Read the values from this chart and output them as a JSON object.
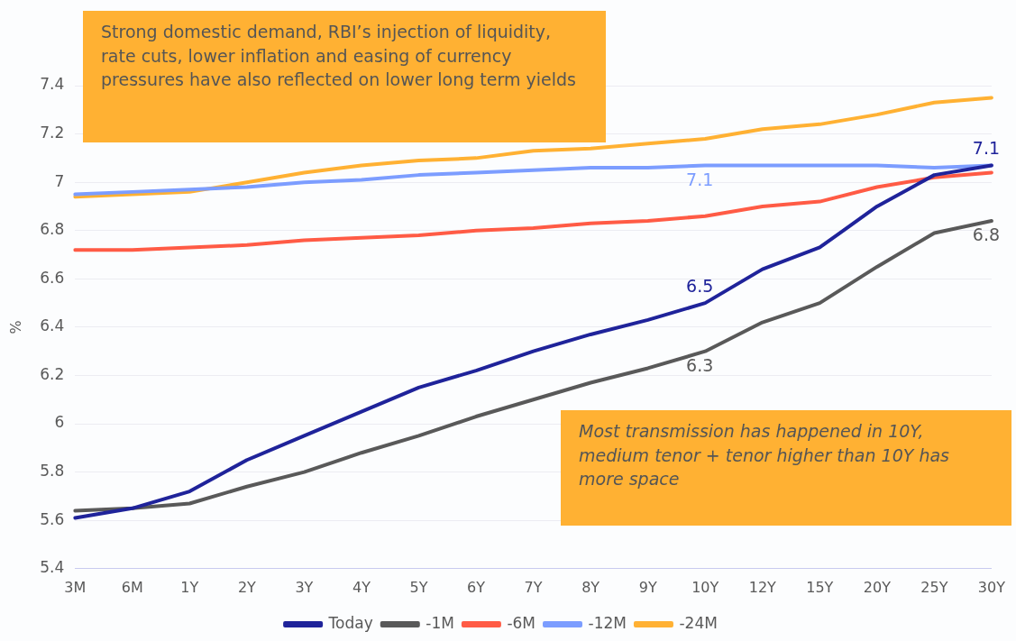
{
  "chart_data": {
    "type": "line",
    "ylabel": "%",
    "categories": [
      "3M",
      "6M",
      "1Y",
      "2Y",
      "3Y",
      "4Y",
      "5Y",
      "6Y",
      "7Y",
      "8Y",
      "9Y",
      "10Y",
      "12Y",
      "15Y",
      "20Y",
      "25Y",
      "30Y"
    ],
    "series": [
      {
        "name": "Today",
        "color": "#1f239a",
        "values": [
          5.61,
          5.65,
          5.72,
          5.85,
          5.95,
          6.05,
          6.15,
          6.22,
          6.3,
          6.37,
          6.43,
          6.5,
          6.64,
          6.73,
          6.9,
          7.03,
          7.07
        ],
        "value_labels": [
          null,
          null,
          null,
          null,
          null,
          null,
          null,
          null,
          null,
          null,
          null,
          "6.5",
          null,
          null,
          null,
          null,
          "7.1"
        ]
      },
      {
        "name": "-1M",
        "color": "#595959",
        "values": [
          5.64,
          5.65,
          5.67,
          5.74,
          5.8,
          5.88,
          5.95,
          6.03,
          6.1,
          6.17,
          6.23,
          6.3,
          6.42,
          6.5,
          6.65,
          6.79,
          6.84
        ],
        "value_labels": [
          null,
          null,
          null,
          null,
          null,
          null,
          null,
          null,
          null,
          null,
          null,
          "6.3",
          null,
          null,
          null,
          null,
          "6.8"
        ]
      },
      {
        "name": "-6M",
        "color": "#ff5b45",
        "values": [
          6.72,
          6.72,
          6.73,
          6.74,
          6.76,
          6.77,
          6.78,
          6.8,
          6.81,
          6.83,
          6.84,
          6.86,
          6.9,
          6.92,
          6.98,
          7.02,
          7.04
        ]
      },
      {
        "name": "-12M",
        "color": "#7c9dff",
        "values": [
          6.95,
          6.96,
          6.97,
          6.98,
          7.0,
          7.01,
          7.03,
          7.04,
          7.05,
          7.06,
          7.06,
          7.07,
          7.07,
          7.07,
          7.07,
          7.06,
          7.07
        ],
        "value_labels": [
          null,
          null,
          null,
          null,
          null,
          null,
          null,
          null,
          null,
          null,
          null,
          "7.1",
          null,
          null,
          null,
          null,
          null
        ]
      },
      {
        "name": "-24M",
        "color": "#ffb133",
        "values": [
          6.94,
          6.95,
          6.96,
          7.0,
          7.04,
          7.07,
          7.09,
          7.1,
          7.13,
          7.14,
          7.16,
          7.18,
          7.22,
          7.24,
          7.28,
          7.33,
          7.35
        ]
      }
    ],
    "ylim": [
      5.4,
      7.4
    ],
    "yticks": [
      5.4,
      5.6,
      5.8,
      6,
      6.2,
      6.4,
      6.6,
      6.8,
      7,
      7.2,
      7.4
    ],
    "grid": "y",
    "legend": "bottom",
    "marker": "none",
    "line_style": "solid",
    "annotations": [
      "Strong domestic demand, RBI’s injection of liquidity, rate cuts, lower inflation  and easing of currency pressures have also reflected on lower long term yields",
      "Most transmission has happened in 10Y, medium tenor + tenor higher than 10Y has more space"
    ]
  }
}
